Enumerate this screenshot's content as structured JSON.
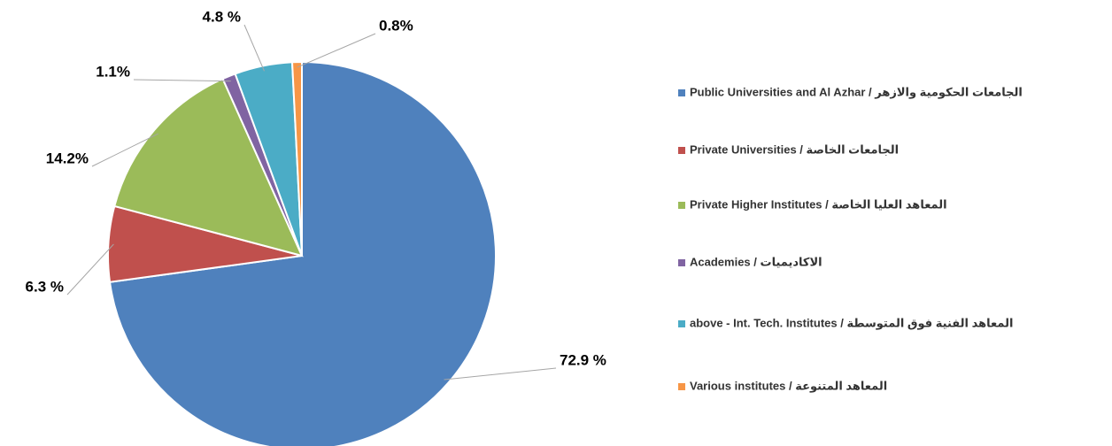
{
  "chart_data": {
    "type": "pie",
    "categories": [
      "Public Universities and Al Azhar / الجامعات الحكومية والازهر",
      "Private Universities / الجامعات الخاصة",
      "Private Higher Institutes / المعاهد العليا الخاصة",
      "Academies / الاكاديميات",
      "above - Int. Tech. Institutes / المعاهد الفنية فوق المتوسطة",
      "Various institutes / المعاهد المتنوعة"
    ],
    "values": [
      72.9,
      6.3,
      14.2,
      1.1,
      4.8,
      0.8
    ],
    "value_labels": [
      "72.9 %",
      "6.3 %",
      "14.2%",
      "1.1%",
      "4.8 %",
      "0.8%"
    ],
    "colors": [
      "#4f81bd",
      "#c0504d",
      "#9bbb59",
      "#8064a2",
      "#4bacc6",
      "#f79646"
    ],
    "legend": "right"
  }
}
